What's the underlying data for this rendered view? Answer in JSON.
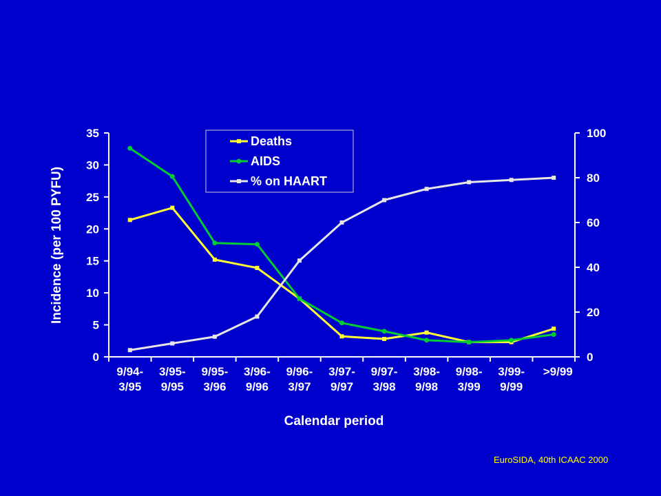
{
  "source_note": "EuroSIDA, 40th ICAAC 2000",
  "chart_data": {
    "type": "line",
    "categories": [
      [
        "9/94-",
        "3/95"
      ],
      [
        "3/95-",
        "9/95"
      ],
      [
        "9/95-",
        "3/96"
      ],
      [
        "3/96-",
        "9/96"
      ],
      [
        "9/96-",
        "3/97"
      ],
      [
        "3/97-",
        "9/97"
      ],
      [
        "9/97-",
        "3/98"
      ],
      [
        "3/98-",
        "9/98"
      ],
      [
        "9/98-",
        "3/99"
      ],
      [
        "3/99-",
        "9/99"
      ],
      [
        ">9/99"
      ]
    ],
    "xlabel": "Calendar period",
    "ylabel": "Incidence (per 100 PYFU)",
    "ylim": [
      0,
      35
    ],
    "yticks": [
      0,
      5,
      10,
      15,
      20,
      25,
      30,
      35
    ],
    "y2lim": [
      0,
      100
    ],
    "y2ticks": [
      0,
      20,
      40,
      60,
      80,
      100
    ],
    "legend_position": "top-left",
    "grid": false,
    "series": [
      {
        "name": "Deaths",
        "axis": "left",
        "color": "#ffff33",
        "marker": "square",
        "values": [
          21.4,
          23.3,
          15.2,
          13.9,
          9.1,
          3.2,
          2.8,
          3.8,
          2.3,
          2.3,
          4.4
        ]
      },
      {
        "name": "AIDS",
        "axis": "left",
        "color": "#00cc33",
        "marker": "circle",
        "values": [
          32.6,
          28.2,
          17.8,
          17.6,
          9.1,
          5.3,
          4.0,
          2.6,
          2.3,
          2.6,
          3.5
        ]
      },
      {
        "name": "% on HAART",
        "axis": "right",
        "color": "#e6e6e6",
        "marker": "square",
        "values": [
          3,
          6,
          9,
          18,
          43,
          60,
          70,
          75,
          78,
          79,
          80
        ]
      }
    ]
  }
}
